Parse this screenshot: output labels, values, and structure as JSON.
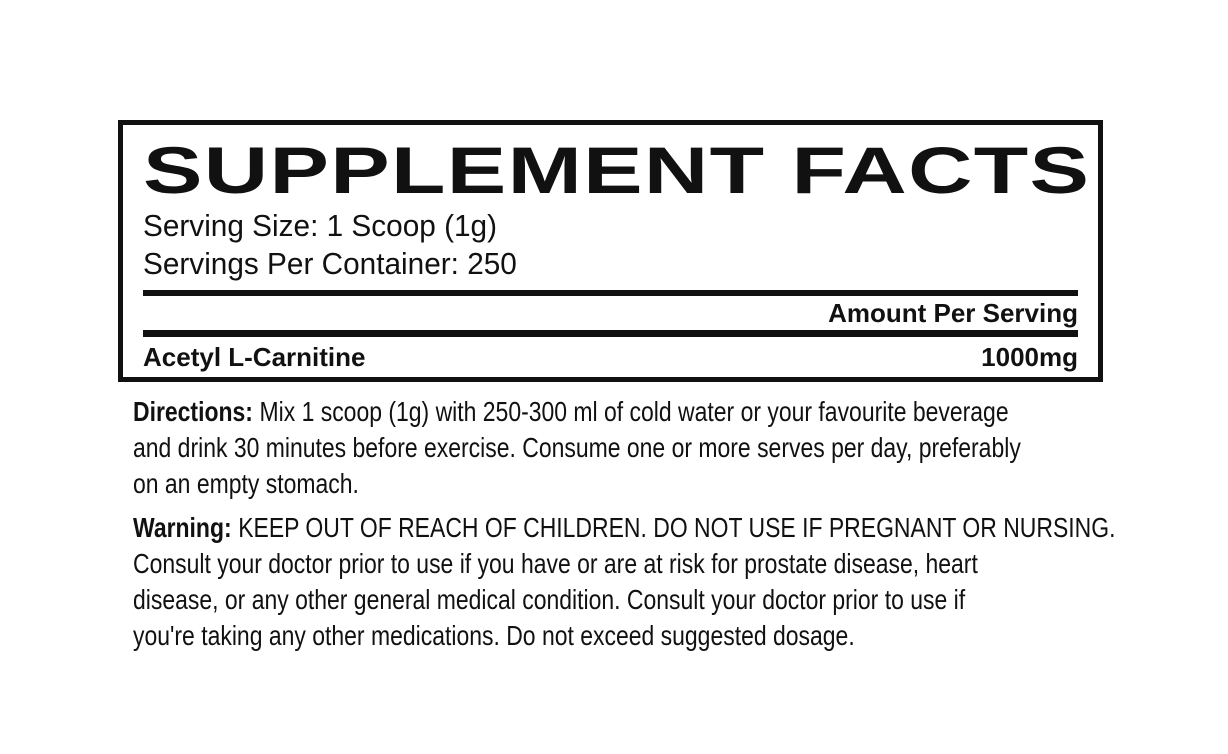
{
  "colors": {
    "ink": "#111111",
    "background": "#ffffff"
  },
  "panel": {
    "title": "SUPPLEMENT FACTS",
    "serving_size": "Serving Size: 1 Scoop (1g)",
    "servings_per_container": "Servings Per Container: 250",
    "amount_per_serving_header": "Amount Per Serving",
    "ingredients": [
      {
        "name": "Acetyl L-Carnitine",
        "amount": "1000mg"
      }
    ]
  },
  "directions": {
    "label": "Directions:",
    "lines": [
      "Mix 1 scoop (1g) with 250-300 ml of cold water or your favourite beverage",
      "and drink 30 minutes before exercise. Consume one or more serves per day, preferably",
      "on an empty stomach."
    ]
  },
  "warning": {
    "label": "Warning:",
    "lines": [
      "KEEP OUT OF REACH OF CHILDREN. DO NOT USE IF PREGNANT OR NURSING.",
      "Consult your doctor prior to use if you have or are at risk for prostate disease, heart",
      "disease, or any other general medical condition. Consult your doctor prior to use if",
      "you're taking any other medications. Do not exceed suggested dosage."
    ]
  }
}
